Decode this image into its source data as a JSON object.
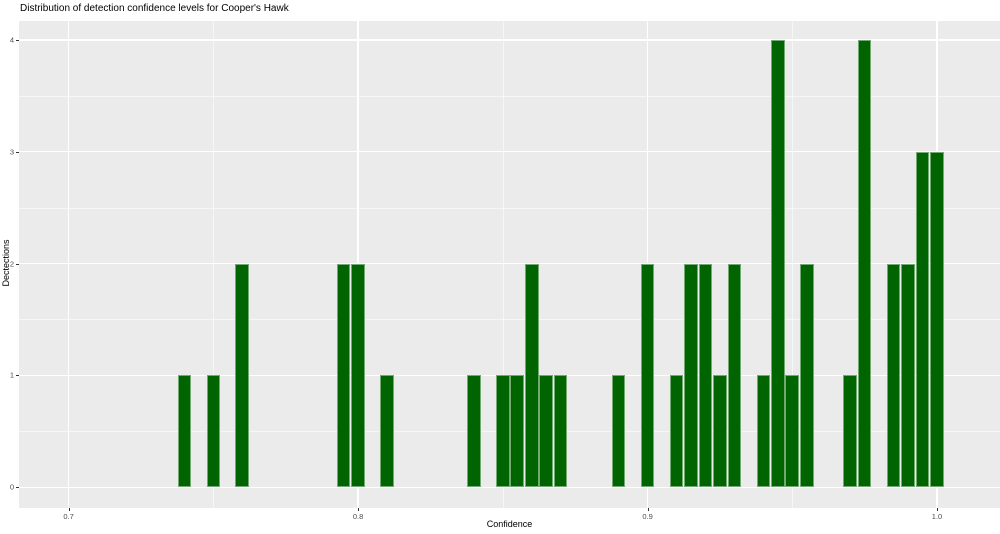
{
  "chart_data": {
    "type": "bar",
    "subtype": "histogram",
    "title": "Distribution of detection confidence levels for Cooper's Hawk",
    "xlabel": "Confidence",
    "ylabel": "Dectections",
    "binwidth": 0.005,
    "bars": [
      {
        "x": 0.74,
        "n": 1
      },
      {
        "x": 0.75,
        "n": 1
      },
      {
        "x": 0.76,
        "n": 2
      },
      {
        "x": 0.795,
        "n": 2
      },
      {
        "x": 0.8,
        "n": 2
      },
      {
        "x": 0.81,
        "n": 1
      },
      {
        "x": 0.84,
        "n": 1
      },
      {
        "x": 0.85,
        "n": 1
      },
      {
        "x": 0.855,
        "n": 1
      },
      {
        "x": 0.86,
        "n": 2
      },
      {
        "x": 0.865,
        "n": 1
      },
      {
        "x": 0.87,
        "n": 1
      },
      {
        "x": 0.89,
        "n": 1
      },
      {
        "x": 0.9,
        "n": 2
      },
      {
        "x": 0.91,
        "n": 1
      },
      {
        "x": 0.915,
        "n": 2
      },
      {
        "x": 0.92,
        "n": 2
      },
      {
        "x": 0.925,
        "n": 1
      },
      {
        "x": 0.93,
        "n": 2
      },
      {
        "x": 0.94,
        "n": 1
      },
      {
        "x": 0.945,
        "n": 4
      },
      {
        "x": 0.95,
        "n": 1
      },
      {
        "x": 0.955,
        "n": 2
      },
      {
        "x": 0.97,
        "n": 1
      },
      {
        "x": 0.975,
        "n": 4
      },
      {
        "x": 0.985,
        "n": 2
      },
      {
        "x": 0.99,
        "n": 2
      },
      {
        "x": 0.995,
        "n": 3
      },
      {
        "x": 1.0,
        "n": 3
      }
    ],
    "x_ticks": [
      {
        "value": 0.7,
        "label": "0.7"
      },
      {
        "value": 0.8,
        "label": "0.8"
      },
      {
        "value": 0.9,
        "label": "0.9"
      },
      {
        "value": 1.0,
        "label": "1.0"
      }
    ],
    "x_minor_ticks": [
      0.75,
      0.85,
      0.95
    ],
    "y_ticks": [
      {
        "value": 0,
        "label": "0"
      },
      {
        "value": 1,
        "label": "1"
      },
      {
        "value": 2,
        "label": "2"
      },
      {
        "value": 3,
        "label": "3"
      },
      {
        "value": 4,
        "label": "4"
      }
    ],
    "y_minor_ticks": [
      0.5,
      1.5,
      2.5,
      3.5
    ],
    "ylim": [
      0,
      4.2
    ],
    "grid": "on",
    "legend": "none",
    "colors": {
      "bar_fill": "#006400",
      "panel_background": "#ebebeb",
      "grid_major": "#ffffff",
      "tick_text": "#4d4d4d",
      "title_text": "#000000"
    }
  }
}
